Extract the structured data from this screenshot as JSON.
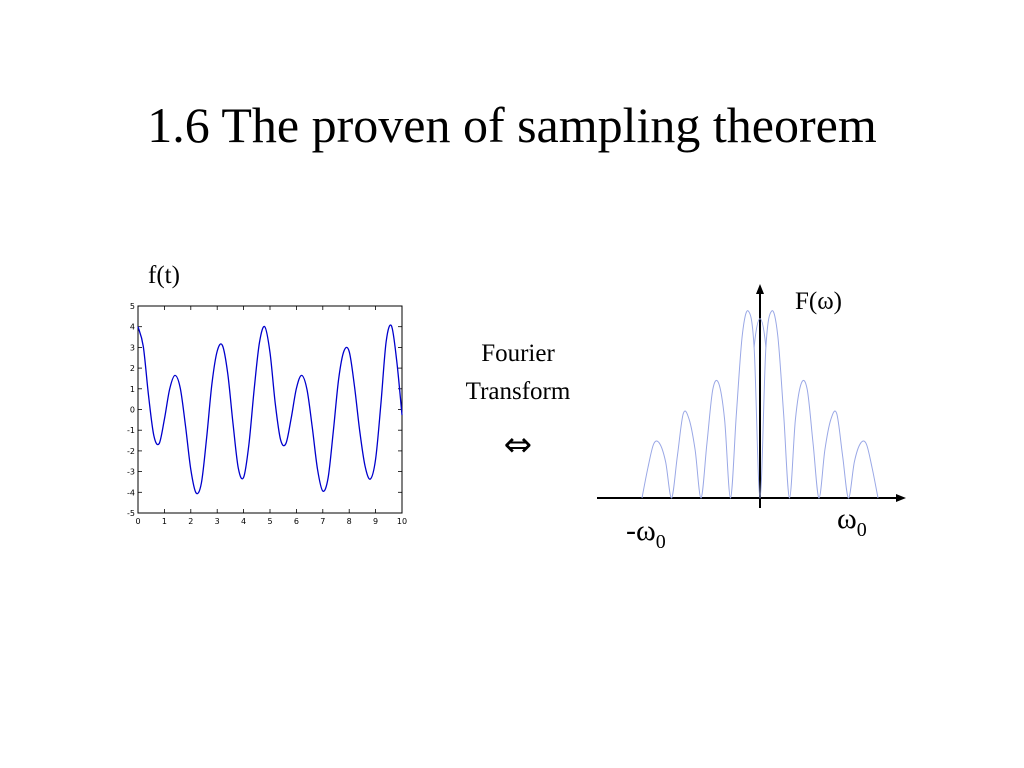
{
  "slide": {
    "title": "1.6 The proven of sampling theorem",
    "time_signal_label": "f(t)",
    "transform_label_line1": "Fourier",
    "transform_label_line2": "Transform",
    "equivalence_symbol": "⇔",
    "spectrum_label": "F(ω)",
    "neg_freq_prefix": "-ω",
    "pos_freq_prefix": "ω",
    "freq_subscript": "0"
  },
  "chart_data": [
    {
      "type": "line",
      "title": "",
      "xlabel": "",
      "ylabel": "",
      "xlim": [
        0,
        10
      ],
      "ylim": [
        -5,
        5
      ],
      "grid": false,
      "x_ticks": [
        "0",
        "1",
        "2",
        "3",
        "4",
        "5",
        "6",
        "7",
        "8",
        "9",
        "10"
      ],
      "y_ticks": [
        "5",
        "4",
        "3",
        "2",
        "1",
        "0",
        "-1",
        "-2",
        "-3",
        "-4",
        "-5"
      ],
      "series": [
        {
          "color": "#0000cc",
          "x": [
            0,
            0.2,
            0.4,
            0.6,
            0.8,
            1.0,
            1.2,
            1.4,
            1.6,
            1.8,
            2.0,
            2.2,
            2.4,
            2.6,
            2.8,
            3.0,
            3.2,
            3.4,
            3.6,
            3.8,
            4.0,
            4.2,
            4.4,
            4.6,
            4.8,
            5.0,
            5.2,
            5.4,
            5.6,
            5.8,
            6.0,
            6.2,
            6.4,
            6.6,
            6.8,
            7.0,
            7.2,
            7.4,
            7.6,
            7.8,
            8.0,
            8.2,
            8.4,
            8.6,
            8.8,
            9.0,
            9.2,
            9.4,
            9.6,
            9.8,
            10.0
          ],
          "y": [
            4.0,
            3.05,
            0.66,
            -1.26,
            -1.65,
            -0.47,
            0.99,
            1.65,
            1.04,
            -0.8,
            -2.9,
            -4.03,
            -3.56,
            -1.36,
            1.24,
            2.82,
            3.09,
            1.73,
            -0.69,
            -2.84,
            -3.28,
            -1.7,
            0.97,
            3.23,
            4.0,
            2.75,
            0.28,
            -1.46,
            -1.65,
            -0.44,
            1.02,
            1.65,
            0.97,
            -0.85,
            -2.89,
            -3.94,
            -3.31,
            -1.03,
            1.47,
            2.82,
            2.8,
            1.12,
            -1.05,
            -2.73,
            -3.36,
            -2.4,
            0.26,
            3.28,
            4.04,
            2.35,
            -0.27
          ]
        }
      ]
    },
    {
      "type": "line",
      "title": "",
      "xlabel": "",
      "ylabel": "F(ω)",
      "x_markers": [
        "-ω0",
        "ω0"
      ],
      "grid": false,
      "series": [
        {
          "color": "#9aa8e6",
          "shape": "|sinc|",
          "x": [
            -4.0,
            -3.8,
            -3.6,
            -3.4,
            -3.2,
            -3.0,
            -2.8,
            -2.6,
            -2.4,
            -2.2,
            -2.0,
            -1.8,
            -1.6,
            -1.4,
            -1.2,
            -1.0,
            -0.8,
            -0.6,
            -0.4,
            -0.2,
            0.0,
            0.2,
            0.4,
            0.6,
            0.8,
            1.0,
            1.2,
            1.4,
            1.6,
            1.8,
            2.0,
            2.2,
            2.4,
            2.6,
            2.8,
            3.0,
            3.2,
            3.4,
            3.6,
            3.8,
            4.0
          ],
          "y": [
            0,
            0.05,
            0.09,
            0.09,
            0.06,
            0,
            0.07,
            0.14,
            0.13,
            0.08,
            0,
            0.09,
            0.18,
            0.19,
            0.13,
            0,
            0.14,
            0.27,
            0.31,
            0.25,
            0,
            0.25,
            0.31,
            0.27,
            0.14,
            0,
            0.13,
            0.19,
            0.18,
            0.09,
            0,
            0.08,
            0.13,
            0.14,
            0.07,
            0,
            0.06,
            0.09,
            0.09,
            0.05,
            0
          ]
        }
      ]
    }
  ]
}
